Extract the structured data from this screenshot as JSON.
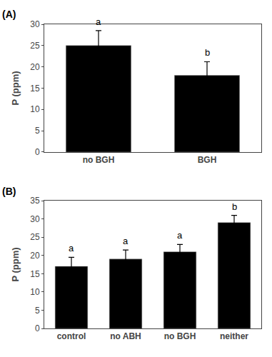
{
  "chart_data": [
    {
      "type": "bar",
      "title": "(A)",
      "categories": [
        "no BGH",
        "BGH"
      ],
      "values": [
        25.0,
        18.0
      ],
      "errors": [
        3.5,
        3.2
      ],
      "annotations": [
        "a",
        "b"
      ],
      "color": "#000000",
      "ylabel": "P (ppm)",
      "ylim": [
        0,
        30
      ],
      "yticks": [
        0,
        5,
        10,
        15,
        20,
        25,
        30
      ],
      "grid": false
    },
    {
      "type": "bar",
      "title": "(B)",
      "categories": [
        "control",
        "no ABH",
        "no BGH",
        "neither"
      ],
      "values": [
        17.0,
        19.0,
        21.0,
        29.0
      ],
      "errors": [
        2.5,
        2.5,
        2.0,
        2.0
      ],
      "annotations": [
        "a",
        "a",
        "a",
        "b"
      ],
      "color": "#000000",
      "ylabel": "P (ppm)",
      "ylim": [
        0,
        35
      ],
      "yticks": [
        0,
        5,
        10,
        15,
        20,
        25,
        30,
        35
      ],
      "grid": false
    }
  ]
}
